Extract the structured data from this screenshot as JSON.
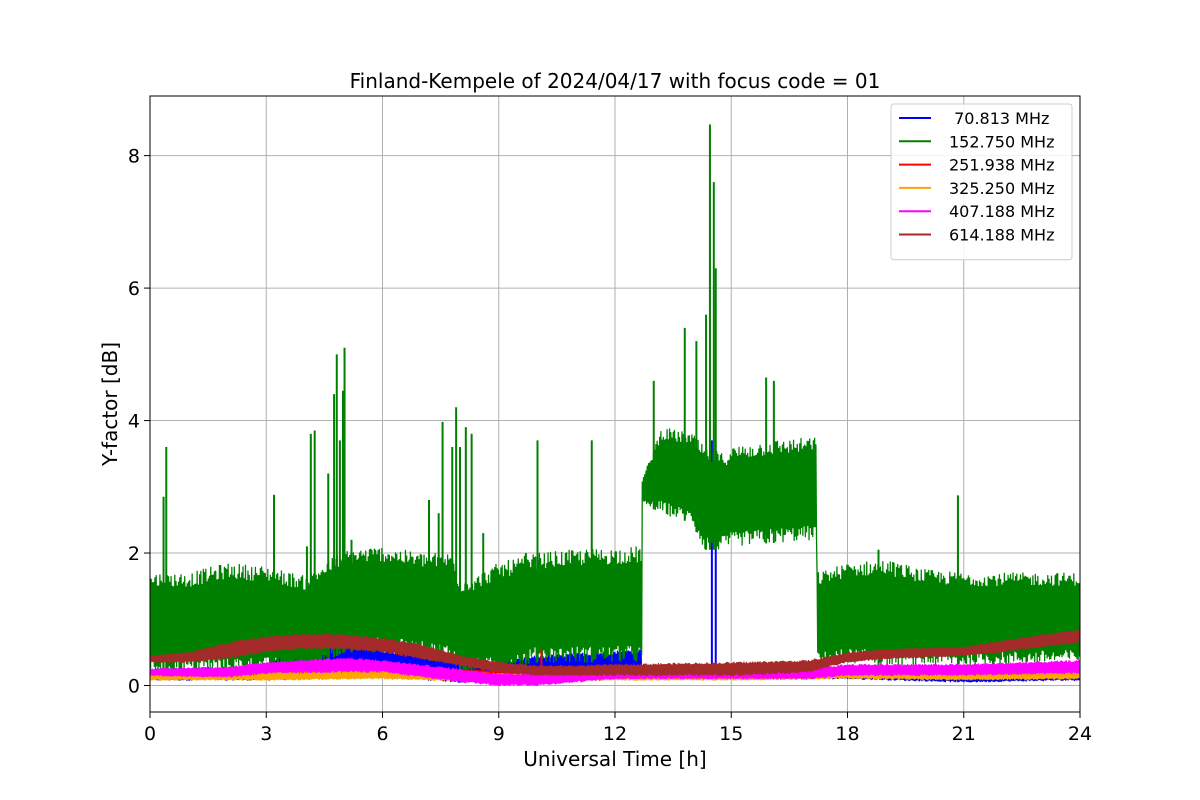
{
  "chart_data": {
    "type": "line",
    "title": "Finland-Kempele of 2024/04/17 with focus code = 01",
    "xlabel": "Universal Time [h]",
    "ylabel": "Y-factor [dB]",
    "xlim": [
      0,
      24
    ],
    "ylim": [
      -0.4,
      8.9
    ],
    "x_ticks": [
      0,
      3,
      6,
      9,
      12,
      15,
      18,
      21,
      24
    ],
    "y_ticks": [
      0,
      2,
      4,
      6,
      8
    ],
    "grid": true,
    "legend_position": "top-right",
    "series": [
      {
        "name": " 70.813 MHz",
        "color": "#0000ff",
        "envelope": {
          "x": [
            0,
            3,
            4.2,
            5,
            6,
            8,
            9,
            10,
            12.7,
            12.7,
            17.2,
            17.2,
            18,
            21,
            24
          ],
          "low": [
            0.08,
            0.08,
            0.1,
            0.15,
            0.12,
            0.05,
            0.05,
            0.1,
            0.1,
            0.1,
            0.1,
            0.1,
            0.1,
            0.05,
            0.08
          ],
          "high": [
            0.25,
            0.3,
            0.8,
            0.9,
            0.55,
            0.4,
            0.35,
            0.45,
            0.55,
            0.3,
            0.3,
            0.3,
            0.25,
            0.2,
            0.25
          ]
        },
        "spikes": [
          [
            4.2,
            0.85
          ],
          [
            5.0,
            1.05
          ],
          [
            8.1,
            1.1
          ],
          [
            14.5,
            3.7
          ],
          [
            14.6,
            3.3
          ]
        ]
      },
      {
        "name": "152.750 MHz",
        "color": "#008000",
        "envelope": {
          "x": [
            0,
            1,
            2,
            3,
            4,
            5,
            6,
            7,
            7.8,
            8,
            8.4,
            9,
            10,
            11,
            12.7,
            12.7,
            13.2,
            14,
            14.3,
            14.8,
            15,
            16,
            17.2,
            17.2,
            18,
            19,
            20,
            21,
            24
          ],
          "low": [
            0.2,
            0.2,
            0.2,
            0.2,
            0.2,
            0.5,
            0.5,
            0.45,
            0.4,
            0.2,
            0.2,
            0.2,
            0.35,
            0.35,
            0.35,
            2.75,
            2.6,
            2.45,
            2.05,
            2.05,
            2.1,
            2.15,
            2.2,
            0.3,
            0.35,
            0.3,
            0.3,
            0.3,
            0.35
          ],
          "high": [
            1.7,
            1.7,
            1.85,
            1.8,
            1.65,
            2.05,
            2.1,
            2.0,
            2.0,
            1.6,
            1.65,
            1.85,
            2.0,
            2.05,
            2.1,
            3.1,
            3.9,
            3.8,
            3.6,
            3.5,
            3.6,
            3.7,
            3.75,
            1.7,
            1.85,
            1.9,
            1.75,
            1.7,
            1.7
          ]
        },
        "spikes": [
          [
            0.35,
            2.85
          ],
          [
            0.42,
            3.6
          ],
          [
            3.2,
            2.88
          ],
          [
            4.05,
            2.1
          ],
          [
            4.15,
            3.8
          ],
          [
            4.25,
            3.85
          ],
          [
            4.6,
            3.2
          ],
          [
            4.75,
            4.4
          ],
          [
            4.82,
            5.0
          ],
          [
            4.9,
            3.7
          ],
          [
            5.02,
            5.1
          ],
          [
            4.98,
            4.45
          ],
          [
            5.2,
            2.2
          ],
          [
            7.2,
            2.8
          ],
          [
            7.45,
            2.6
          ],
          [
            7.55,
            3.98
          ],
          [
            7.8,
            3.6
          ],
          [
            7.9,
            4.2
          ],
          [
            8.0,
            3.6
          ],
          [
            8.15,
            3.9
          ],
          [
            8.3,
            3.8
          ],
          [
            8.6,
            2.3
          ],
          [
            9.7,
            2.0
          ],
          [
            10.0,
            3.7
          ],
          [
            11.4,
            3.7
          ],
          [
            13.0,
            4.6
          ],
          [
            13.8,
            5.4
          ],
          [
            14.1,
            5.2
          ],
          [
            14.35,
            5.6
          ],
          [
            14.45,
            8.47
          ],
          [
            14.55,
            7.6
          ],
          [
            14.6,
            6.3
          ],
          [
            15.9,
            4.65
          ],
          [
            16.1,
            4.6
          ],
          [
            18.8,
            2.05
          ],
          [
            20.85,
            2.87
          ]
        ]
      },
      {
        "name": "251.938 MHz",
        "color": "#ff0000",
        "envelope": {
          "x": [
            0,
            3,
            6,
            9,
            12,
            15,
            18,
            21,
            24
          ],
          "low": [
            0.12,
            0.12,
            0.15,
            0.1,
            0.12,
            0.12,
            0.12,
            0.12,
            0.12
          ],
          "high": [
            0.22,
            0.25,
            0.28,
            0.22,
            0.25,
            0.25,
            0.25,
            0.22,
            0.25
          ]
        },
        "spikes": [
          [
            10.1,
            0.55
          ]
        ]
      },
      {
        "name": "325.250 MHz",
        "color": "#ffa500",
        "envelope": {
          "x": [
            0,
            3,
            6,
            9,
            12,
            15,
            18,
            21,
            24
          ],
          "low": [
            0.08,
            0.08,
            0.1,
            0.05,
            0.08,
            0.08,
            0.1,
            0.08,
            0.1
          ],
          "high": [
            0.2,
            0.22,
            0.25,
            0.18,
            0.2,
            0.2,
            0.3,
            0.22,
            0.25
          ]
        },
        "spikes": []
      },
      {
        "name": "407.188 MHz",
        "color": "#ff00ff",
        "envelope": {
          "x": [
            0,
            2,
            3,
            5,
            6,
            8,
            9,
            10,
            12,
            15,
            17,
            18,
            21,
            24
          ],
          "low": [
            0.15,
            0.12,
            0.18,
            0.2,
            0.2,
            0.05,
            0.0,
            0.0,
            0.1,
            0.1,
            0.1,
            0.15,
            0.15,
            0.18
          ],
          "high": [
            0.25,
            0.28,
            0.35,
            0.42,
            0.38,
            0.25,
            0.18,
            0.18,
            0.25,
            0.25,
            0.25,
            0.32,
            0.32,
            0.38
          ]
        },
        "spikes": []
      },
      {
        "name": "614.188 MHz",
        "color": "#a52a2a",
        "envelope": {
          "x": [
            0,
            1,
            2,
            3,
            4,
            5,
            6,
            7,
            8,
            9,
            10,
            11,
            12,
            15,
            17,
            18,
            19,
            21,
            22,
            24
          ],
          "low": [
            0.35,
            0.35,
            0.4,
            0.5,
            0.55,
            0.55,
            0.5,
            0.4,
            0.3,
            0.2,
            0.15,
            0.15,
            0.15,
            0.15,
            0.2,
            0.35,
            0.4,
            0.45,
            0.5,
            0.65
          ],
          "high": [
            0.45,
            0.5,
            0.65,
            0.75,
            0.78,
            0.78,
            0.72,
            0.62,
            0.45,
            0.35,
            0.3,
            0.3,
            0.32,
            0.35,
            0.38,
            0.5,
            0.55,
            0.58,
            0.68,
            0.85
          ]
        },
        "spikes": []
      }
    ]
  }
}
